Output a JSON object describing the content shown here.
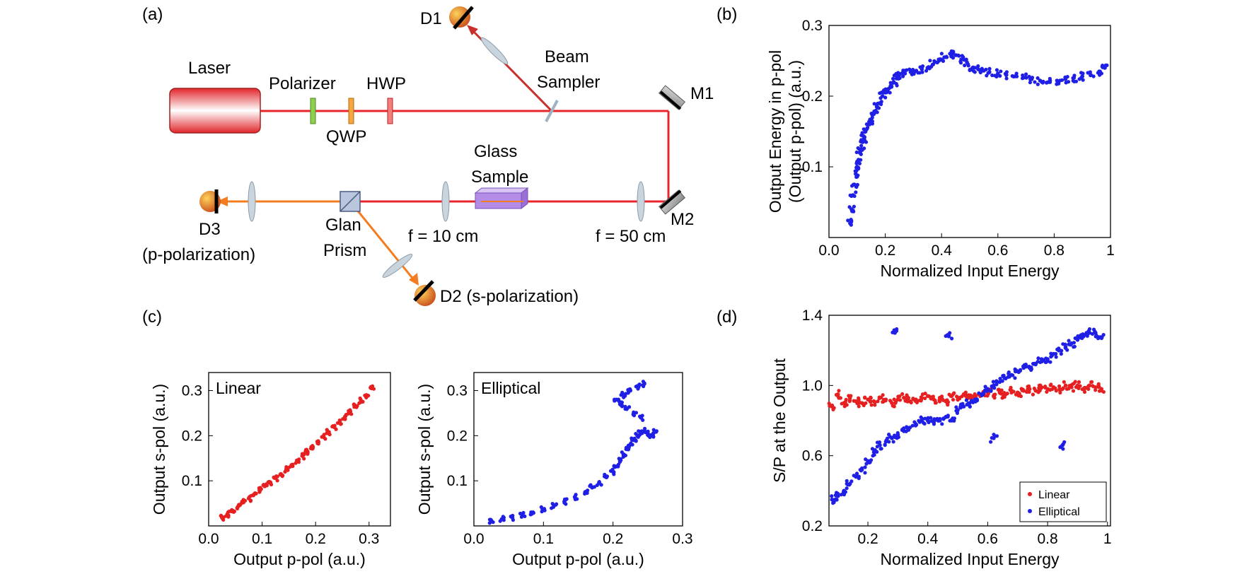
{
  "panel_labels": [
    "(a)",
    "(b)",
    "(c)",
    "(d)"
  ],
  "setup": {
    "laser": "Laser",
    "polarizer": "Polarizer",
    "qwp": "QWP",
    "hwp": "HWP",
    "beam_sampler_1": "Beam",
    "beam_sampler_2": "Sampler",
    "d1": "D1",
    "m1": "M1",
    "m2": "M2",
    "glass_sample_1": "Glass",
    "glass_sample_2": "Sample",
    "f10": "f = 10 cm",
    "f50": "f = 50 cm",
    "glan_1": "Glan",
    "glan_2": "Prism",
    "d3": "D3",
    "d3_pol": "(p-polarization)",
    "d2": "D2 (s-polarization)",
    "colors": {
      "red_beam": "#e8252b",
      "orange_beam": "#f47c20",
      "sample": "#b48ce6",
      "lens": "#c9d4dc"
    }
  },
  "chart_data": [
    {
      "id": "b",
      "type": "scatter",
      "title": "",
      "xlabel": "Normalized Input Energy",
      "ylabel_lines": [
        "Output Energy in p-pol",
        "(Output p-pol)  (a.u.)"
      ],
      "xlim": [
        0,
        1
      ],
      "ylim": [
        0,
        0.3
      ],
      "xticks": [
        0,
        0.2,
        0.4,
        0.6,
        0.8,
        1
      ],
      "xtick_labels": [
        "0.0",
        "0.2",
        "0.4",
        "0.6",
        "0.8",
        "1"
      ],
      "yticks": [
        0.1,
        0.2,
        0.3
      ],
      "ytick_labels": [
        "0.1",
        "0.2",
        "0.3"
      ],
      "series": [
        {
          "name": "Elliptical",
          "color": "#1f1fe6",
          "x": [
            0.075,
            0.08,
            0.085,
            0.09,
            0.095,
            0.1,
            0.105,
            0.11,
            0.115,
            0.12,
            0.125,
            0.13,
            0.14,
            0.15,
            0.16,
            0.17,
            0.18,
            0.19,
            0.2,
            0.21,
            0.22,
            0.23,
            0.24,
            0.25,
            0.27,
            0.29,
            0.31,
            0.33,
            0.35,
            0.37,
            0.39,
            0.41,
            0.43,
            0.45,
            0.47,
            0.49,
            0.51,
            0.53,
            0.55,
            0.57,
            0.6,
            0.63,
            0.66,
            0.69,
            0.72,
            0.75,
            0.78,
            0.81,
            0.84,
            0.87,
            0.9,
            0.93,
            0.96,
            0.98
          ],
          "y": [
            0.02,
            0.04,
            0.06,
            0.075,
            0.09,
            0.1,
            0.11,
            0.12,
            0.125,
            0.135,
            0.14,
            0.15,
            0.16,
            0.165,
            0.175,
            0.185,
            0.19,
            0.2,
            0.205,
            0.21,
            0.215,
            0.22,
            0.225,
            0.23,
            0.232,
            0.234,
            0.236,
            0.238,
            0.24,
            0.245,
            0.25,
            0.255,
            0.26,
            0.258,
            0.252,
            0.248,
            0.24,
            0.238,
            0.236,
            0.234,
            0.232,
            0.23,
            0.228,
            0.226,
            0.224,
            0.222,
            0.22,
            0.222,
            0.224,
            0.226,
            0.228,
            0.23,
            0.235,
            0.24
          ]
        }
      ]
    },
    {
      "id": "c1",
      "type": "scatter",
      "title": "Linear",
      "xlabel": "Output p-pol (a.u.)",
      "ylabel": "Output s-pol (a.u.)",
      "xlim": [
        0,
        0.34
      ],
      "ylim": [
        0,
        0.34
      ],
      "xticks": [
        0,
        0.1,
        0.2,
        0.3
      ],
      "xtick_labels": [
        "0.0",
        "0.1",
        "0.2",
        "0.3"
      ],
      "yticks": [
        0.1,
        0.2,
        0.3
      ],
      "ytick_labels": [
        "0.1",
        "0.2",
        "0.3"
      ],
      "series": [
        {
          "name": "Linear",
          "color": "#e62020",
          "x": [
            0.025,
            0.035,
            0.045,
            0.055,
            0.065,
            0.075,
            0.085,
            0.095,
            0.105,
            0.115,
            0.125,
            0.135,
            0.145,
            0.155,
            0.165,
            0.175,
            0.185,
            0.195,
            0.205,
            0.215,
            0.225,
            0.235,
            0.245,
            0.255,
            0.265,
            0.275,
            0.285,
            0.295,
            0.305
          ],
          "y": [
            0.018,
            0.026,
            0.034,
            0.043,
            0.052,
            0.061,
            0.07,
            0.079,
            0.088,
            0.097,
            0.106,
            0.115,
            0.125,
            0.135,
            0.145,
            0.155,
            0.165,
            0.175,
            0.186,
            0.197,
            0.208,
            0.219,
            0.23,
            0.242,
            0.254,
            0.266,
            0.278,
            0.29,
            0.305
          ]
        }
      ]
    },
    {
      "id": "c2",
      "type": "scatter",
      "title": "Elliptical",
      "xlabel": "Output p-pol (a.u.)",
      "ylabel": "Output s-pol (a.u.)",
      "xlim": [
        0,
        0.3
      ],
      "ylim": [
        0,
        0.34
      ],
      "xticks": [
        0,
        0.1,
        0.2,
        0.3
      ],
      "xtick_labels": [
        "0.0",
        "0.1",
        "0.2",
        "0.3"
      ],
      "yticks": [
        0.1,
        0.2,
        0.3
      ],
      "ytick_labels": [
        "0.1",
        "0.2",
        "0.3"
      ],
      "series": [
        {
          "name": "Elliptical",
          "color": "#1f1fe6",
          "x": [
            0.025,
            0.04,
            0.055,
            0.07,
            0.085,
            0.1,
            0.115,
            0.13,
            0.145,
            0.16,
            0.17,
            0.18,
            0.19,
            0.2,
            0.205,
            0.21,
            0.215,
            0.22,
            0.225,
            0.23,
            0.235,
            0.24,
            0.245,
            0.25,
            0.255,
            0.26,
            0.24,
            0.23,
            0.22,
            0.21,
            0.205,
            0.215,
            0.225,
            0.235,
            0.245
          ],
          "y": [
            0.012,
            0.015,
            0.019,
            0.024,
            0.03,
            0.037,
            0.045,
            0.054,
            0.064,
            0.075,
            0.085,
            0.096,
            0.108,
            0.12,
            0.132,
            0.145,
            0.158,
            0.17,
            0.18,
            0.19,
            0.2,
            0.205,
            0.21,
            0.205,
            0.2,
            0.21,
            0.24,
            0.25,
            0.26,
            0.27,
            0.28,
            0.29,
            0.3,
            0.31,
            0.315
          ]
        }
      ]
    },
    {
      "id": "d",
      "type": "scatter",
      "title": "",
      "xlabel": "Normalized Input Energy",
      "ylabel": "S/P at the Output",
      "xlim": [
        0.07,
        1.01
      ],
      "ylim": [
        0.2,
        1.4
      ],
      "xticks": [
        0.2,
        0.4,
        0.6,
        0.8,
        1
      ],
      "xtick_labels": [
        "0.2",
        "0.4",
        "0.6",
        "0.8",
        "1"
      ],
      "yticks": [
        0.2,
        0.6,
        1.0,
        1.4
      ],
      "ytick_labels": [
        "0.2",
        "0.6",
        "1.0",
        "1.4"
      ],
      "legend": {
        "position": "bottom-right",
        "entries": [
          "Linear",
          "Elliptical"
        ]
      },
      "series": [
        {
          "name": "Linear",
          "color": "#e62020",
          "x": [
            0.08,
            0.1,
            0.12,
            0.14,
            0.16,
            0.18,
            0.2,
            0.22,
            0.24,
            0.26,
            0.28,
            0.3,
            0.32,
            0.34,
            0.36,
            0.38,
            0.4,
            0.42,
            0.44,
            0.46,
            0.48,
            0.5,
            0.52,
            0.54,
            0.56,
            0.58,
            0.6,
            0.62,
            0.64,
            0.66,
            0.68,
            0.7,
            0.72,
            0.74,
            0.76,
            0.78,
            0.8,
            0.82,
            0.84,
            0.86,
            0.88,
            0.9,
            0.92,
            0.94,
            0.96,
            0.98
          ],
          "y": [
            0.88,
            0.95,
            0.9,
            0.93,
            0.91,
            0.9,
            0.92,
            0.91,
            0.93,
            0.92,
            0.9,
            0.92,
            0.93,
            0.91,
            0.92,
            0.93,
            0.94,
            0.92,
            0.93,
            0.91,
            0.94,
            0.92,
            0.95,
            0.93,
            0.94,
            0.95,
            0.96,
            0.94,
            0.96,
            0.95,
            0.97,
            0.96,
            0.97,
            0.98,
            0.97,
            0.99,
            0.98,
            0.99,
            0.98,
            1.0,
            0.99,
            1.0,
            0.98,
            1.0,
            0.99,
            0.98
          ]
        },
        {
          "name": "Elliptical",
          "color": "#1f1fe6",
          "x": [
            0.08,
            0.1,
            0.12,
            0.14,
            0.16,
            0.18,
            0.2,
            0.22,
            0.24,
            0.26,
            0.28,
            0.3,
            0.32,
            0.34,
            0.36,
            0.38,
            0.4,
            0.42,
            0.44,
            0.46,
            0.48,
            0.5,
            0.52,
            0.54,
            0.56,
            0.58,
            0.6,
            0.62,
            0.64,
            0.66,
            0.68,
            0.7,
            0.72,
            0.74,
            0.76,
            0.78,
            0.8,
            0.82,
            0.84,
            0.86,
            0.88,
            0.9,
            0.92,
            0.94,
            0.96,
            0.98,
            0.29,
            0.47,
            0.62,
            0.85
          ],
          "y": [
            0.35,
            0.37,
            0.4,
            0.44,
            0.48,
            0.52,
            0.57,
            0.62,
            0.66,
            0.68,
            0.7,
            0.72,
            0.74,
            0.76,
            0.78,
            0.8,
            0.8,
            0.79,
            0.8,
            0.82,
            0.8,
            0.86,
            0.88,
            0.9,
            0.92,
            0.95,
            0.98,
            1.0,
            1.02,
            1.04,
            1.06,
            1.08,
            1.1,
            1.1,
            1.12,
            1.15,
            1.15,
            1.18,
            1.2,
            1.22,
            1.24,
            1.26,
            1.28,
            1.3,
            1.3,
            1.27,
            1.3,
            1.28,
            0.7,
            0.66
          ]
        }
      ]
    }
  ]
}
